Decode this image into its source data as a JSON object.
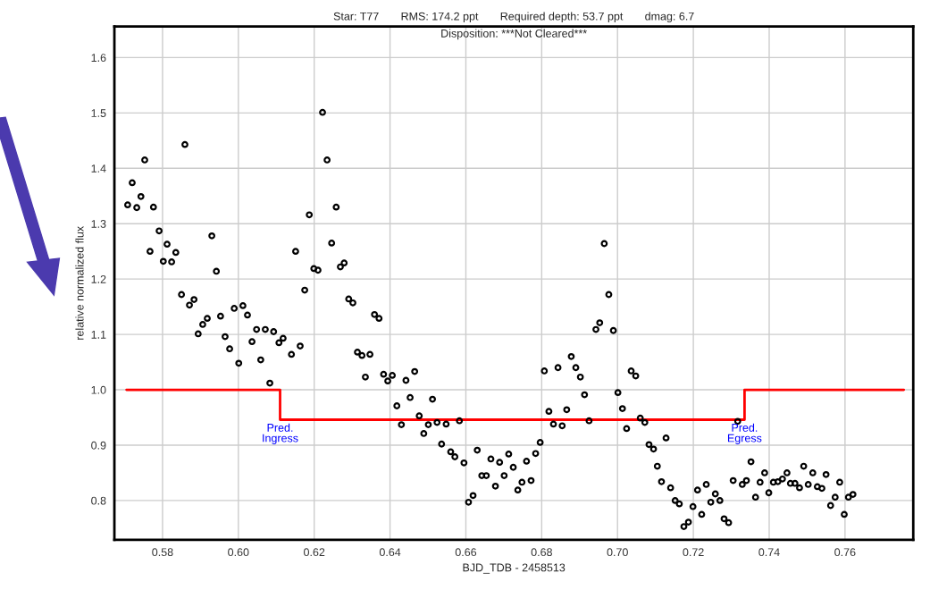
{
  "chart_data": {
    "type": "scatter",
    "title": "Star: T77       RMS: 174.2 ppt       Required depth: 53.7 ppt       dmag: 6.7",
    "subtitle": "Disposition: ***Not Cleared***",
    "xlabel": "BJD_TDB - 2458513",
    "ylabel": "relative normalized flux",
    "xlim": [
      0.5673,
      0.778
    ],
    "ylim": [
      0.729,
      1.656
    ],
    "xticks": [
      0.58,
      {
        "value": 0.6,
        "label": "0.60"
      },
      0.62,
      0.64,
      0.66,
      0.68,
      {
        "value": 0.7,
        "label": "0.70"
      },
      0.72,
      0.74,
      0.76
    ],
    "yticks": [
      0.8,
      0.9,
      {
        "value": 1.0,
        "label": "1.0"
      },
      1.1,
      1.2,
      1.3,
      1.4,
      1.5,
      1.6
    ],
    "grid": true,
    "legend": false,
    "marker": "circle",
    "series": [
      {
        "color": "#000000",
        "x": [
          0.5708,
          0.572,
          0.5732,
          0.5743,
          0.5753,
          0.5767,
          0.5776,
          0.5791,
          0.5802,
          0.5812,
          0.5824,
          0.5835,
          0.585,
          0.5859,
          0.5871,
          0.5883,
          0.5894,
          0.5906,
          0.5918,
          0.593,
          0.5942,
          0.5953,
          0.5965,
          0.5977,
          0.5989,
          0.6001,
          0.6012,
          0.6024,
          0.6036,
          0.6048,
          0.6059,
          0.6071,
          0.6083,
          0.6093,
          0.6107,
          0.6118,
          0.614,
          0.6151,
          0.6163,
          0.6175,
          0.6187,
          0.6199,
          0.621,
          0.6222,
          0.6234,
          0.6246,
          0.6258,
          0.6269,
          0.6279,
          0.6291,
          0.6302,
          0.6314,
          0.6326,
          0.6335,
          0.6347,
          0.6359,
          0.6371,
          0.6383,
          0.6394,
          0.6406,
          0.6418,
          0.643,
          0.6442,
          0.6453,
          0.6465,
          0.6477,
          0.6489,
          0.6501,
          0.6512,
          0.6524,
          0.6536,
          0.6548,
          0.656,
          0.6571,
          0.6583,
          0.6595,
          0.6607,
          0.6619,
          0.663,
          0.6642,
          0.6654,
          0.6666,
          0.6678,
          0.6689,
          0.6701,
          0.6713,
          0.6725,
          0.6737,
          0.6748,
          0.676,
          0.6772,
          0.6784,
          0.6796,
          0.6807,
          0.6819,
          0.6831,
          0.6843,
          0.6854,
          0.6866,
          0.6878,
          0.689,
          0.6902,
          0.6913,
          0.6925,
          0.6943,
          0.6953,
          0.6965,
          0.6977,
          0.6989,
          0.7001,
          0.7013,
          0.7024,
          0.7036,
          0.7048,
          0.706,
          0.7072,
          0.7083,
          0.7095,
          0.7105,
          0.7116,
          0.7128,
          0.714,
          0.7152,
          0.7163,
          0.7175,
          0.7187,
          0.7199,
          0.7211,
          0.7222,
          0.7234,
          0.7246,
          0.7258,
          0.727,
          0.7281,
          0.7293,
          0.7305,
          0.7317,
          0.7329,
          0.734,
          0.7352,
          0.7364,
          0.7376,
          0.7388,
          0.7399,
          0.7411,
          0.7423,
          0.7435,
          0.7447,
          0.7456,
          0.7468,
          0.748,
          0.7491,
          0.7503,
          0.7515,
          0.7527,
          0.7539,
          0.755,
          0.7562,
          0.7574,
          0.7586,
          0.7598,
          0.7609,
          0.7621
        ],
        "values": [
          1.334,
          1.374,
          1.329,
          1.349,
          1.415,
          1.25,
          1.33,
          1.287,
          1.232,
          1.263,
          1.231,
          1.248,
          1.172,
          1.443,
          1.153,
          1.163,
          1.101,
          1.118,
          1.129,
          1.278,
          1.214,
          1.133,
          1.096,
          1.074,
          1.147,
          1.048,
          1.152,
          1.135,
          1.087,
          1.109,
          1.054,
          1.109,
          1.012,
          1.105,
          1.085,
          1.093,
          1.064,
          1.25,
          1.079,
          1.18,
          1.316,
          1.219,
          1.216,
          1.501,
          1.415,
          1.265,
          1.33,
          1.222,
          1.229,
          1.164,
          1.157,
          1.068,
          1.062,
          1.023,
          1.064,
          1.136,
          1.129,
          1.028,
          1.016,
          1.026,
          0.971,
          0.937,
          1.017,
          0.986,
          1.033,
          0.953,
          0.921,
          0.937,
          0.983,
          0.941,
          0.902,
          0.938,
          0.888,
          0.879,
          0.944,
          0.868,
          0.797,
          0.809,
          0.891,
          0.845,
          0.845,
          0.875,
          0.826,
          0.869,
          0.845,
          0.884,
          0.86,
          0.819,
          0.833,
          0.871,
          0.836,
          0.885,
          0.905,
          1.034,
          0.961,
          0.938,
          1.04,
          0.935,
          0.964,
          1.06,
          1.04,
          1.023,
          0.991,
          0.944,
          1.109,
          1.121,
          1.264,
          1.172,
          1.107,
          0.995,
          0.966,
          0.93,
          1.034,
          1.025,
          0.949,
          0.941,
          0.901,
          0.893,
          0.862,
          0.834,
          0.913,
          0.823,
          0.8,
          0.794,
          0.753,
          0.761,
          0.789,
          0.819,
          0.775,
          0.829,
          0.797,
          0.812,
          0.8,
          0.767,
          0.76,
          0.836,
          0.943,
          0.829,
          0.836,
          0.87,
          0.806,
          0.833,
          0.85,
          0.814,
          0.833,
          0.834,
          0.839,
          0.85,
          0.831,
          0.831,
          0.823,
          0.862,
          0.829,
          0.85,
          0.825,
          0.822,
          0.847,
          0.791,
          0.806,
          0.833,
          0.775,
          0.806,
          0.811
        ]
      },
      {
        "type": "step",
        "color": "#ff0000",
        "marker": "none",
        "line_style": "solid",
        "x": [
          0.5705,
          0.611,
          0.7335,
          0.7755
        ],
        "values": [
          1.0,
          0.946,
          1.0,
          1.0
        ]
      }
    ],
    "annotations": [
      {
        "text": "Pred.\nIngress",
        "x": 0.611,
        "y": 0.946
      },
      {
        "text": "Pred.\nEgress",
        "x": 0.7335,
        "y": 0.946
      }
    ]
  }
}
